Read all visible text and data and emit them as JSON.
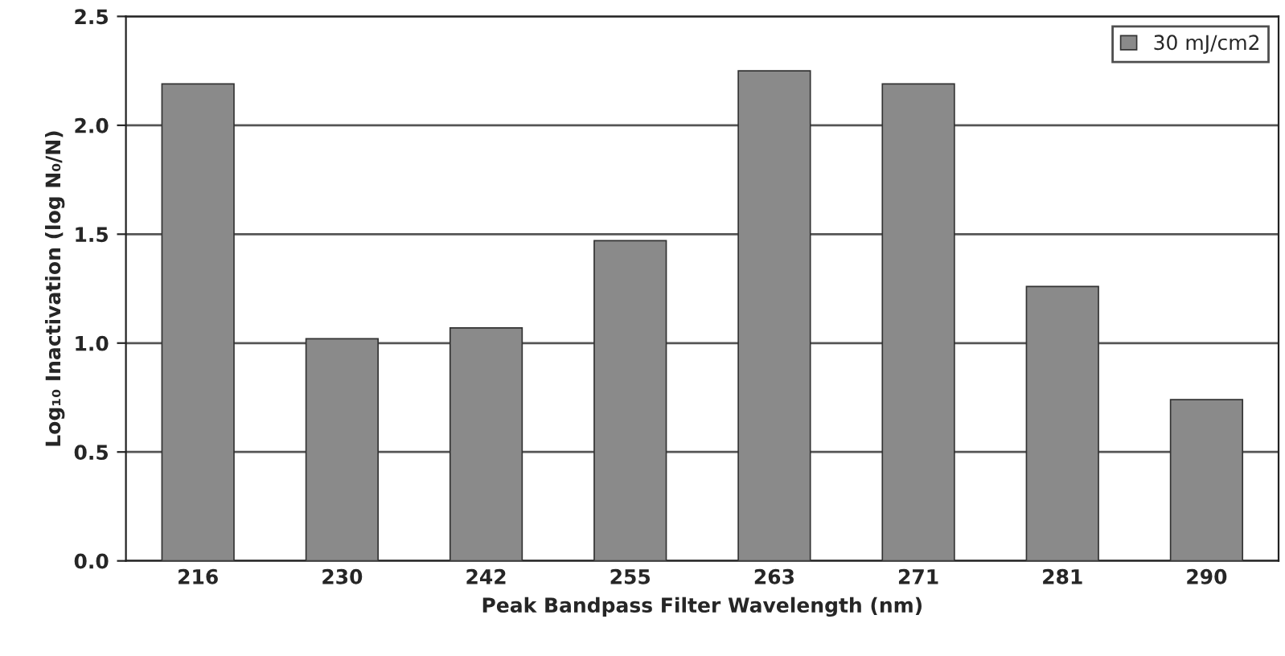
{
  "chart_data": {
    "type": "bar",
    "xlabel": "Peak Bandpass Filter Wavelength (nm)",
    "ylabel": "Log₁₀ Inactivation (log N₀/N)",
    "categories": [
      "216",
      "230",
      "242",
      "255",
      "263",
      "271",
      "281",
      "290"
    ],
    "series": [
      {
        "name": "30 mJ/cm2",
        "color": "#8a8a8a",
        "values": [
          2.19,
          1.02,
          1.07,
          1.47,
          2.25,
          2.19,
          1.26,
          0.74
        ]
      }
    ],
    "ylim": [
      0,
      2.5
    ],
    "yticks": [
      {
        "value": 0,
        "label": "0.0"
      },
      0.5,
      {
        "value": 1,
        "label": "1.0"
      },
      1.5,
      {
        "value": 2,
        "label": "2.0"
      },
      2.5
    ],
    "grid": "y",
    "legend": "top right"
  }
}
